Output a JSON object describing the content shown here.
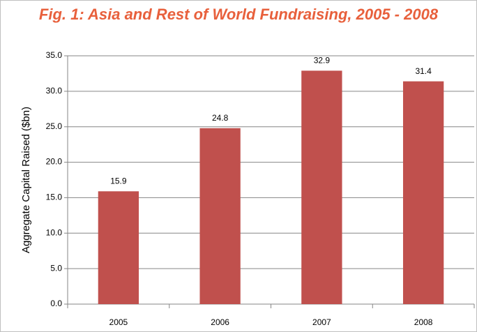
{
  "chart_data": {
    "type": "bar",
    "title": "Fig. 1: Asia and Rest of World Fundraising, 2005 - 2008",
    "y_label": "Aggregate Capital Raised ($bn)",
    "categories": [
      "2005",
      "2006",
      "2007",
      "2008"
    ],
    "values": [
      15.9,
      24.8,
      32.9,
      31.4
    ],
    "color": "#c0504d",
    "ylim": [
      0,
      35
    ],
    "yticks": [
      {
        "value": 0,
        "label": "0.0"
      },
      {
        "value": 5,
        "label": "5.0"
      },
      {
        "value": 10,
        "label": "10.0"
      },
      {
        "value": 15,
        "label": "15.0"
      },
      {
        "value": 20,
        "label": "20.0"
      },
      {
        "value": 25,
        "label": "25.0"
      },
      {
        "value": 30,
        "label": "30.0"
      },
      {
        "value": 35,
        "label": "35.0"
      }
    ],
    "grid": true
  }
}
